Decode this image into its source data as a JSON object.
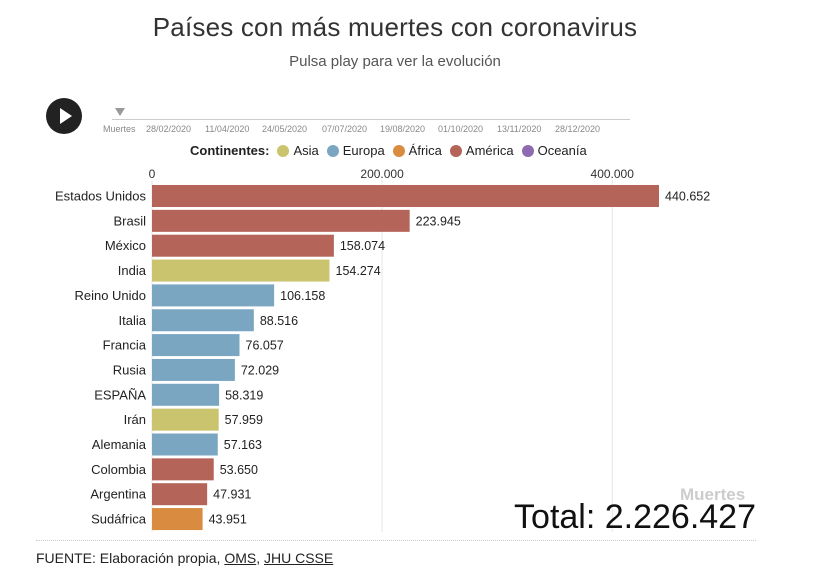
{
  "title": "Países con más muertes con coronavirus",
  "subtitle": "Pulsa play para ver la evolución",
  "timeline": {
    "label": "Muertes",
    "dates": [
      "28/02/2020",
      "11/04/2020",
      "24/05/2020",
      "07/07/2020",
      "19/08/2020",
      "01/10/2020",
      "13/11/2020",
      "28/12/2020"
    ]
  },
  "legend": {
    "title": "Continentes:",
    "items": [
      {
        "name": "Asia",
        "color": "#cbc46e"
      },
      {
        "name": "Europa",
        "color": "#7aa6c2"
      },
      {
        "name": "África",
        "color": "#d98b3f"
      },
      {
        "name": "América",
        "color": "#b5645a"
      },
      {
        "name": "Oceanía",
        "color": "#8e6bb0"
      }
    ]
  },
  "chart_data": {
    "type": "bar",
    "orientation": "horizontal",
    "categories": [
      "Estados Unidos",
      "Brasil",
      "México",
      "India",
      "Reino Unido",
      "Italia",
      "Francia",
      "Rusia",
      "ESPAÑA",
      "Irán",
      "Alemania",
      "Colombia",
      "Argentina",
      "Sudáfrica"
    ],
    "values": [
      440652,
      223945,
      158074,
      154274,
      106158,
      88516,
      76057,
      72029,
      58319,
      57959,
      57163,
      53650,
      47931,
      43951
    ],
    "value_labels": [
      "440.652",
      "223.945",
      "158.074",
      "154.274",
      "106.158",
      "88.516",
      "76.057",
      "72.029",
      "58.319",
      "57.959",
      "57.163",
      "53.650",
      "47.931",
      "43.951"
    ],
    "continents": [
      "América",
      "América",
      "América",
      "Asia",
      "Europa",
      "Europa",
      "Europa",
      "Europa",
      "Europa",
      "Asia",
      "Europa",
      "América",
      "América",
      "África"
    ],
    "x_ticks": [
      0,
      200000,
      400000
    ],
    "x_tick_labels": [
      "0",
      "200.000",
      "400.000"
    ],
    "xlim": [
      0,
      440652
    ],
    "grid": true,
    "legend_position": "top"
  },
  "total": {
    "label": "Muertes",
    "text": "Total: 2.226.427"
  },
  "source": {
    "prefix": "FUENTE: Elaboración propia, ",
    "link1": "OMS",
    "sep": ", ",
    "link2": "JHU CSSE"
  }
}
